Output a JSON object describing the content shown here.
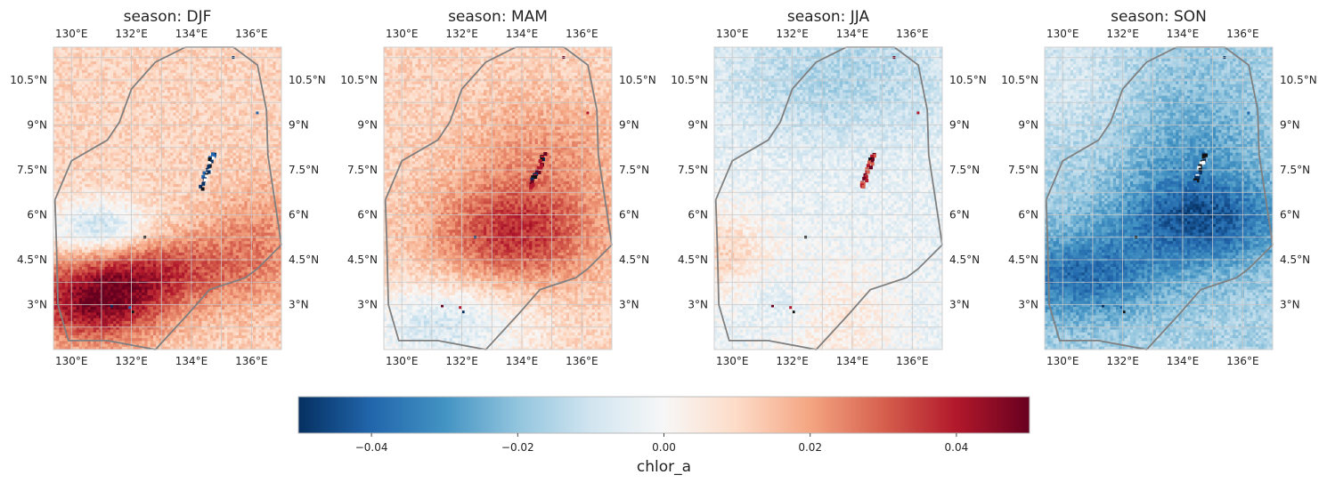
{
  "figure": {
    "colormap": "RdBu_r",
    "boundary_color": "#808080",
    "gridline_color": "#c8c8c8",
    "panels": [
      {
        "title": "season: DJF",
        "pattern": "djf"
      },
      {
        "title": "season: MAM",
        "pattern": "mam"
      },
      {
        "title": "season: JJA",
        "pattern": "jja"
      },
      {
        "title": "season: SON",
        "pattern": "son"
      }
    ],
    "lon_ticks": [
      {
        "label": "130°E",
        "value": 130
      },
      {
        "label": "132°E",
        "value": 132
      },
      {
        "label": "134°E",
        "value": 134
      },
      {
        "label": "136°E",
        "value": 136
      }
    ],
    "lat_ticks": [
      {
        "label": "10.5°N",
        "value": 10.5
      },
      {
        "label": "9°N",
        "value": 9
      },
      {
        "label": "7.5°N",
        "value": 7.5
      },
      {
        "label": "6°N",
        "value": 6
      },
      {
        "label": "4.5°N",
        "value": 4.5
      },
      {
        "label": "3°N",
        "value": 3
      }
    ],
    "lon_range": [
      129.4,
      137.0
    ],
    "lat_range": [
      1.5,
      11.6
    ],
    "colorbar": {
      "label": "chlor_a",
      "range": [
        -0.05,
        0.05
      ],
      "ticks": [
        {
          "label": "−0.04",
          "value": -0.04
        },
        {
          "label": "−0.02",
          "value": -0.02
        },
        {
          "label": "0.00",
          "value": 0.0
        },
        {
          "label": "0.02",
          "value": 0.02
        },
        {
          "label": "0.04",
          "value": 0.04
        }
      ]
    }
  }
}
